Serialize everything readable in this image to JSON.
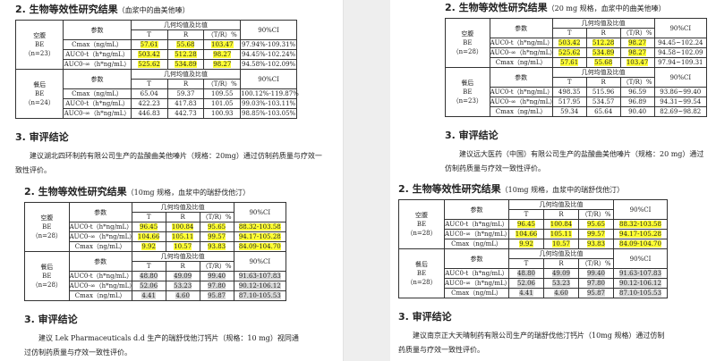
{
  "docs": [
    {
      "title": "2. 生物等效性研究结果",
      "subtitle": "（血浆中的曲美他嗪）",
      "header": {
        "param": "参数",
        "geo": "几何均值及比值",
        "t": "T",
        "r": "R",
        "ratio": "（T/R）%",
        "ci": "90%CI"
      },
      "groups": [
        {
          "lines": [
            "空腹",
            "BE",
            "（n=23）"
          ],
          "rows": [
            {
              "param": "Cmax（ng/mL）",
              "t": "57.61",
              "r": "55.68",
              "ratio": "103.47",
              "ci": "97.94%-109.31%",
              "hl": "y3"
            },
            {
              "param": "AUC0-t（h*ng/mL）",
              "t": "503.42",
              "r": "512.28",
              "ratio": "98.27",
              "ci": "94.45%-102.24%",
              "hl": "y3"
            },
            {
              "param": "AUC0-∞（h*ng/mL）",
              "t": "525.62",
              "r": "534.89",
              "ratio": "98.27",
              "ci": "94.58%-102.09%",
              "hl": "y3"
            }
          ]
        },
        {
          "lines": [
            "餐后",
            "BE",
            "（n=24）"
          ],
          "rows": [
            {
              "param": "Cmax（ng/mL）",
              "t": "65.04",
              "r": "59.37",
              "ratio": "109.55",
              "ci": "100.12%-119.87%",
              "hl": ""
            },
            {
              "param": "AUC0-t（h*ng/mL）",
              "t": "422.23",
              "r": "417.83",
              "ratio": "101.05",
              "ci": "99.03%-103.11%",
              "hl": ""
            },
            {
              "param": "AUC0-∞（h*ng/mL）",
              "t": "446.83",
              "r": "442.73",
              "ratio": "100.93",
              "ci": "98.85%-103.05%",
              "hl": ""
            }
          ]
        }
      ],
      "conclusion_heading": "3. 审评结论",
      "conclusion": "建议湖北四环制药有限公司生产的盐酸曲美他嗪片（规格：20mg）通过仿制药质量与疗效一致性评价。"
    },
    {
      "title": "2. 生物等效性研究结果",
      "subtitle": "（10mg 规格，血浆中的瑞舒伐他汀）",
      "header": {
        "param": "参数",
        "geo": "几何均值及比值",
        "t": "T",
        "r": "R",
        "ratio": "（T/R）%",
        "ci": "90%CI"
      },
      "groups": [
        {
          "lines": [
            "空腹",
            "BE",
            "（n=28）"
          ],
          "rows": [
            {
              "param": "AUC0-t（h*ng/mL）",
              "t": "96.45",
              "r": "100.84",
              "ratio": "95.65",
              "ci": "88.32-103.58",
              "hl": "y4"
            },
            {
              "param": "AUC0-∞（h*ng/mL）",
              "t": "104.66",
              "r": "105.11",
              "ratio": "99.57",
              "ci": "94.17-105.28",
              "hl": "y4"
            },
            {
              "param": "Cmax（ng/mL）",
              "t": "9.92",
              "r": "10.57",
              "ratio": "93.83",
              "ci": "84.09-104.70",
              "hl": "y4"
            }
          ]
        },
        {
          "lines": [
            "餐后",
            "BE",
            "（n=28）"
          ],
          "rows": [
            {
              "param": "AUC0-t（h*ng/mL）",
              "t": "48.80",
              "r": "49.09",
              "ratio": "99.40",
              "ci": "91.63-107.83",
              "hl": "g4"
            },
            {
              "param": "AUC0-∞（h*ng/mL）",
              "t": "52.06",
              "r": "53.23",
              "ratio": "97.80",
              "ci": "90.12-106.12",
              "hl": "g4"
            },
            {
              "param": "Cmax（ng/mL）",
              "t": "4.41",
              "r": "4.60",
              "ratio": "95.87",
              "ci": "87.10-105.53",
              "hl": "g4"
            }
          ]
        }
      ],
      "conclusion_heading": "3. 审评结论",
      "conclusion": "建议 Lek Pharmaceuticals d.d 生产的瑞舒伐他汀钙片（规格：10 mg）视同通过仿制药质量与疗效一致性评价。"
    },
    {
      "title": "2. 生物等效性研究结果",
      "subtitle": "（20 mg 规格，血浆中的曲美他嗪）",
      "header": {
        "param": "参数",
        "geo": "几何均值及比值",
        "t": "T",
        "r": "R",
        "ratio": "（T/R）%",
        "ci": "90%CI"
      },
      "groups": [
        {
          "lines": [
            "空腹",
            "BE",
            "（n=28）"
          ],
          "rows": [
            {
              "param": "AUC0-t（h*ng/mL）",
              "t": "503.42",
              "r": "512.28",
              "ratio": "98.27",
              "ci": "94.45~102.24",
              "hl": "y3"
            },
            {
              "param": "AUC0-∞（h*ng/mL）",
              "t": "525.62",
              "r": "534.89",
              "ratio": "98.27",
              "ci": "94.58~102.09",
              "hl": "y3"
            },
            {
              "param": "Cmax（ng/mL）",
              "t": "57.61",
              "r": "55.68",
              "ratio": "103.47",
              "ci": "97.94~109.31",
              "hl": "y3"
            }
          ]
        },
        {
          "lines": [
            "餐后",
            "BE",
            "（n=23）"
          ],
          "rows": [
            {
              "param": "AUC0-t（h*ng/mL）",
              "t": "498.35",
              "r": "515.96",
              "ratio": "96.59",
              "ci": "93.86~99.40",
              "hl": ""
            },
            {
              "param": "AUC0-∞（h*ng/mL）",
              "t": "517.95",
              "r": "534.57",
              "ratio": "96.89",
              "ci": "94.31~99.54",
              "hl": ""
            },
            {
              "param": "Cmax（ng/mL）",
              "t": "59.34",
              "r": "65.64",
              "ratio": "90.40",
              "ci": "82.69~98.82",
              "hl": ""
            }
          ]
        }
      ],
      "conclusion_heading": "3. 审评结论",
      "conclusion": "建议远大医药（中国）有限公司生产的盐酸曲美他嗪片（规格：20 mg）通过仿制药质量与疗效一致性评价。"
    },
    {
      "title": "2. 生物等效性研究结果",
      "subtitle": "（10mg 规格，血浆中的瑞舒伐他汀）",
      "header": {
        "param": "参数",
        "geo": "几何均值及比值",
        "t": "T",
        "r": "R",
        "ratio": "（T/R）%",
        "ci": "90%CI"
      },
      "groups": [
        {
          "lines": [
            "空腹",
            "BE",
            "（n=28）"
          ],
          "rows": [
            {
              "param": "AUC0-t（h*ng/mL）",
              "t": "96.45",
              "r": "100.84",
              "ratio": "95.65",
              "ci": "88.32-103.58",
              "hl": "y4"
            },
            {
              "param": "AUC0-∞（h*ng/mL）",
              "t": "104.66",
              "r": "105.11",
              "ratio": "99.57",
              "ci": "94.17-105.28",
              "hl": "y4"
            },
            {
              "param": "Cmax（ng/mL）",
              "t": "9.92",
              "r": "10.57",
              "ratio": "93.83",
              "ci": "84.09-104.70",
              "hl": "y4"
            }
          ]
        },
        {
          "lines": [
            "餐后",
            "BE",
            "（n=28）"
          ],
          "rows": [
            {
              "param": "AUC0-t（h*ng/mL）",
              "t": "48.80",
              "r": "49.09",
              "ratio": "99.40",
              "ci": "91.63-107.83",
              "hl": "g4"
            },
            {
              "param": "AUC0-∞（h*ng/mL）",
              "t": "52.06",
              "r": "53.23",
              "ratio": "97.80",
              "ci": "90.12-106.12",
              "hl": "g4"
            },
            {
              "param": "Cmax（ng/mL）",
              "t": "4.41",
              "r": "4.60",
              "ratio": "95.87",
              "ci": "87.10-105.53",
              "hl": "g4"
            }
          ]
        }
      ],
      "conclusion_heading": "3. 审评结论",
      "conclusion": "建议南京正大天晴制药有限公司生产的瑞舒伐他汀钙片（10mg 规格）通过仿制药质量与疗效一致性评价。"
    }
  ]
}
